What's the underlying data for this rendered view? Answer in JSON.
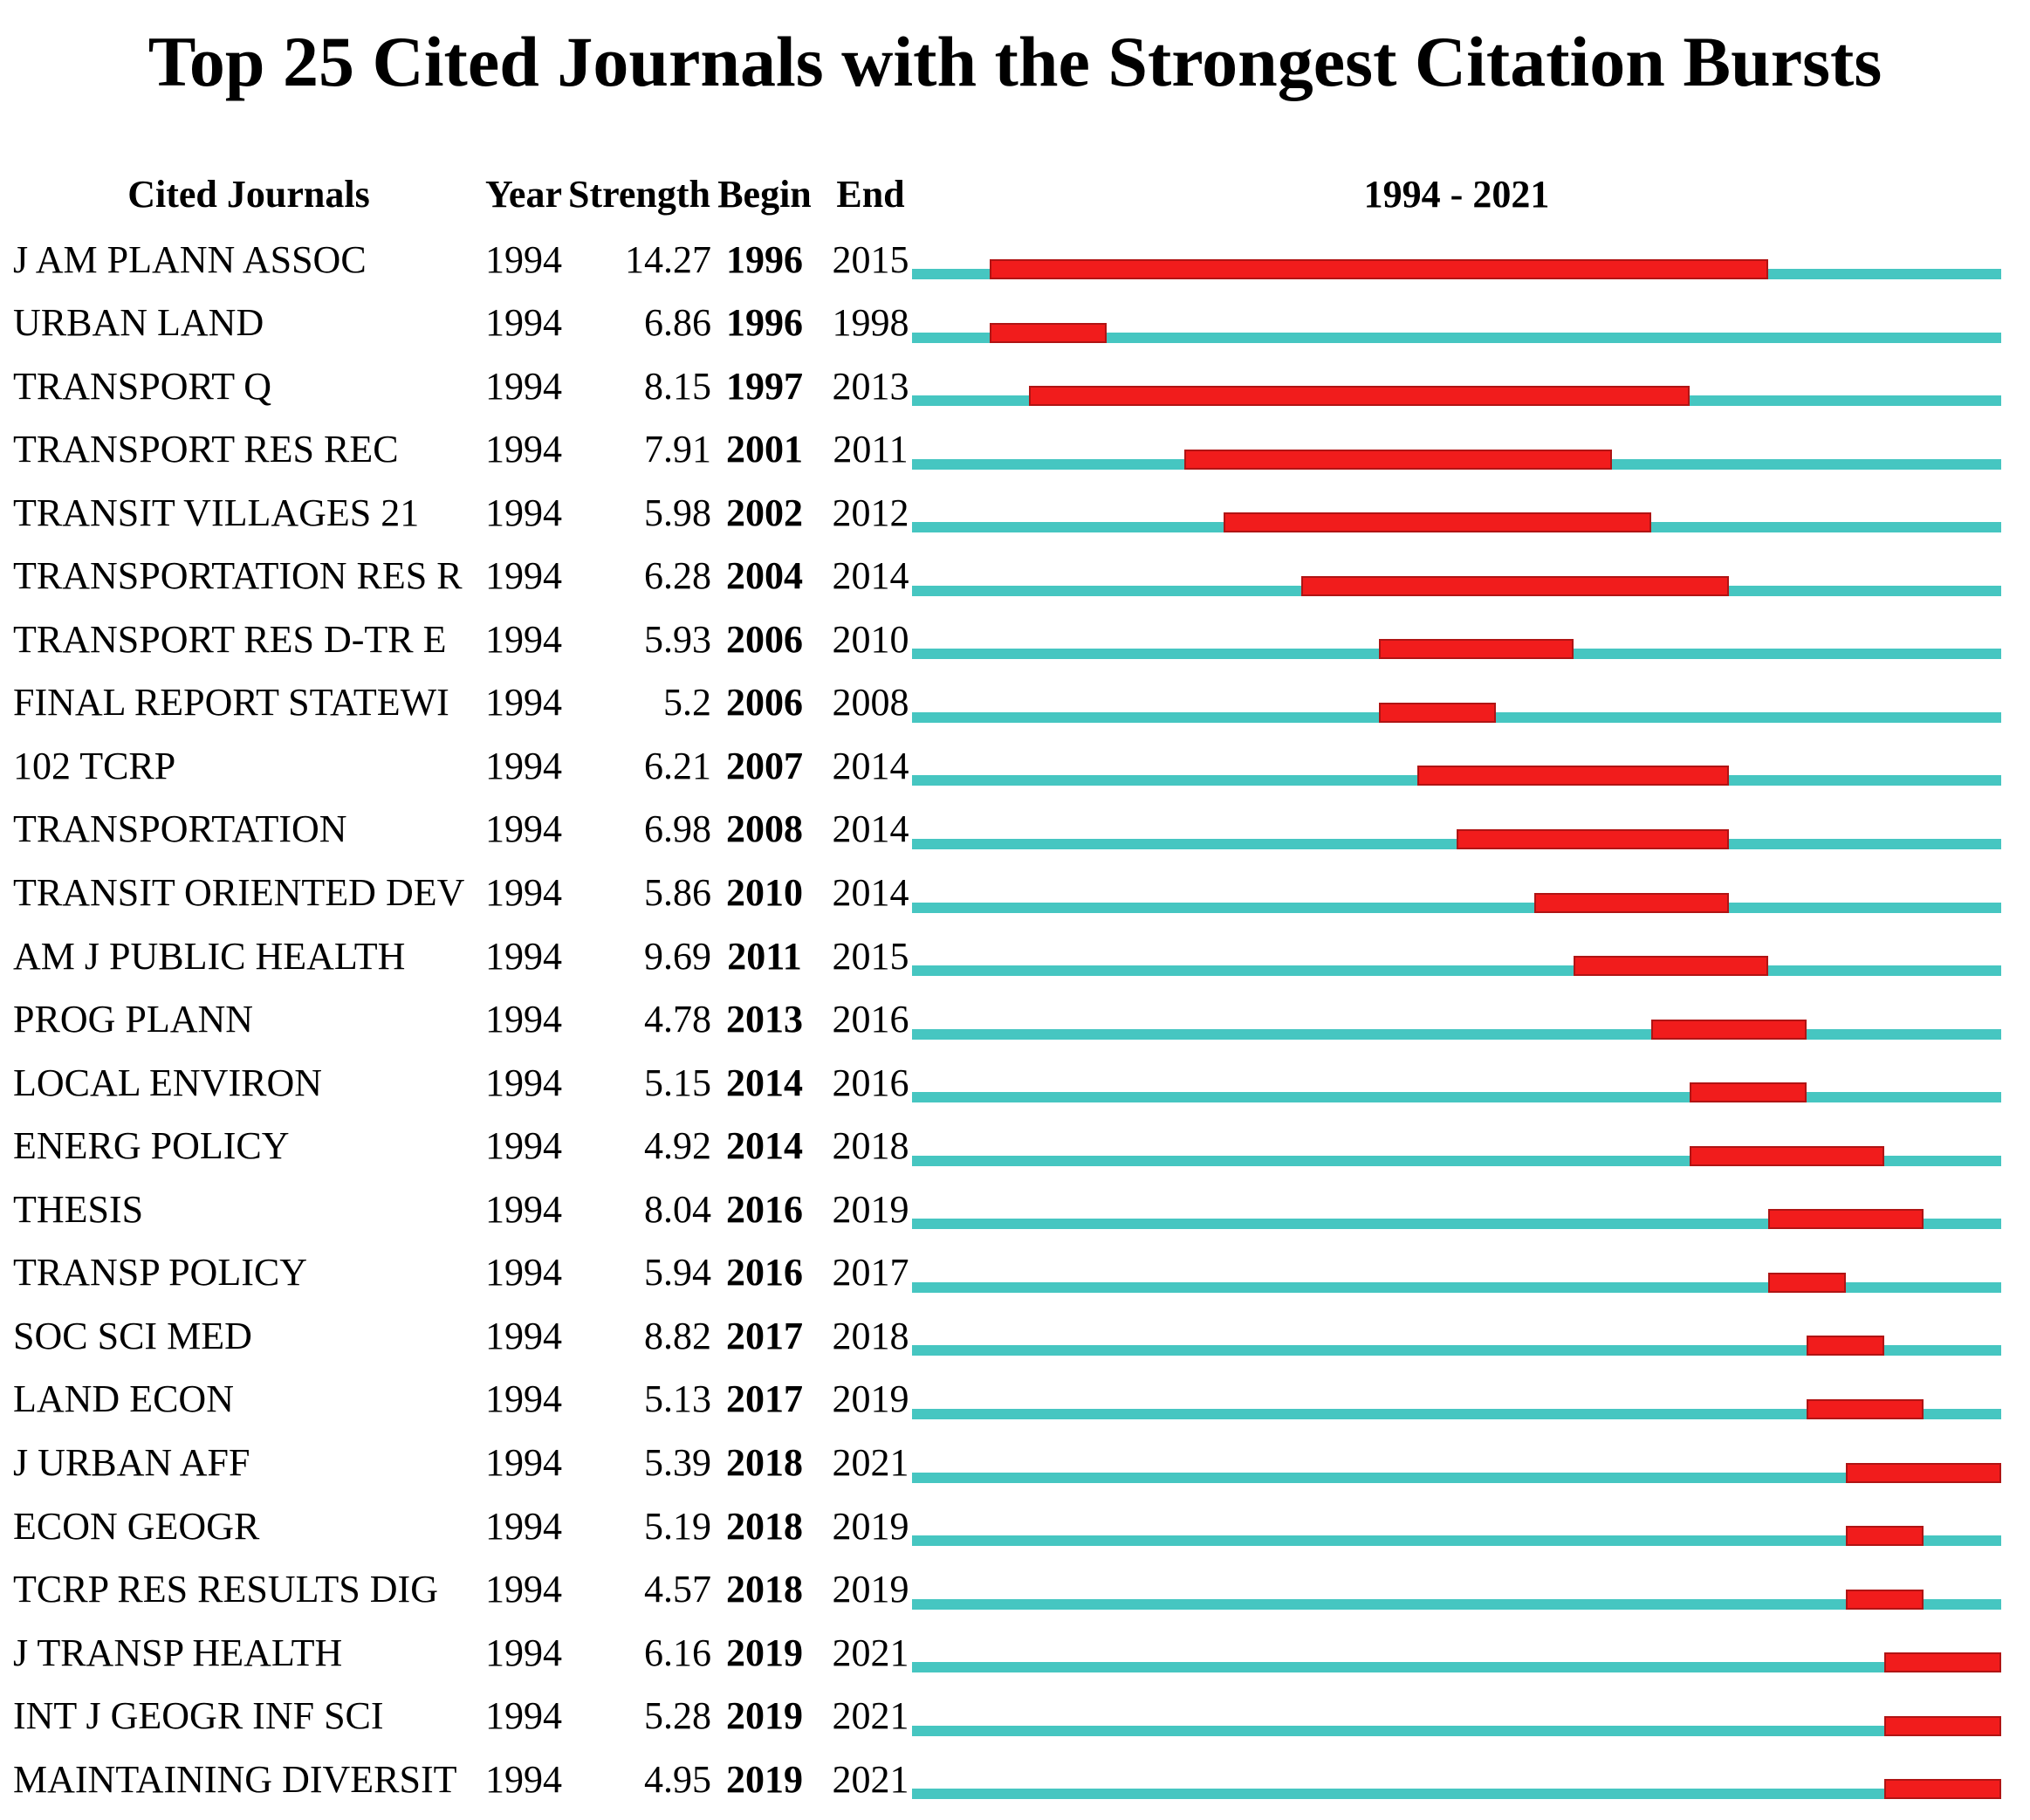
{
  "colors": {
    "background": "#FFFFFF",
    "text": "#000000",
    "timeline": "#46C6C1",
    "burst": "#F11C1C",
    "burst_border": "#B01414"
  },
  "chart_data": {
    "type": "table",
    "title": "Top 25 Cited Journals with the Strongest Citation Bursts",
    "column_headers": [
      "Cited Journals",
      "Year",
      "Strength",
      "Begin",
      "End"
    ],
    "timeline_label": "1994 - 2021",
    "timeline_range": [
      1994,
      2021
    ],
    "legend": {
      "timeline_track": "full interval 1994-2021 (teal)",
      "burst_bar": "citation burst interval (red)"
    },
    "rows": [
      {
        "journal": "J AM PLANN ASSOC",
        "year": "1994",
        "strength": "14.27",
        "begin": 1996,
        "end": 2015
      },
      {
        "journal": "URBAN LAND",
        "year": "1994",
        "strength": "6.86",
        "begin": 1996,
        "end": 1998
      },
      {
        "journal": "TRANSPORT Q",
        "year": "1994",
        "strength": "8.15",
        "begin": 1997,
        "end": 2013
      },
      {
        "journal": "TRANSPORT RES REC",
        "year": "1994",
        "strength": "7.91",
        "begin": 2001,
        "end": 2011
      },
      {
        "journal": "TRANSIT VILLAGES 21",
        "year": "1994",
        "strength": "5.98",
        "begin": 2002,
        "end": 2012
      },
      {
        "journal": "TRANSPORTATION RES R",
        "year": "1994",
        "strength": "6.28",
        "begin": 2004,
        "end": 2014
      },
      {
        "journal": "TRANSPORT RES D-TR E",
        "year": "1994",
        "strength": "5.93",
        "begin": 2006,
        "end": 2010
      },
      {
        "journal": "FINAL REPORT STATEWI",
        "year": "1994",
        "strength": "5.2",
        "begin": 2006,
        "end": 2008
      },
      {
        "journal": "102 TCRP",
        "year": "1994",
        "strength": "6.21",
        "begin": 2007,
        "end": 2014
      },
      {
        "journal": "TRANSPORTATION",
        "year": "1994",
        "strength": "6.98",
        "begin": 2008,
        "end": 2014
      },
      {
        "journal": "TRANSIT ORIENTED DEV",
        "year": "1994",
        "strength": "5.86",
        "begin": 2010,
        "end": 2014
      },
      {
        "journal": "AM J PUBLIC HEALTH",
        "year": "1994",
        "strength": "9.69",
        "begin": 2011,
        "end": 2015
      },
      {
        "journal": "PROG PLANN",
        "year": "1994",
        "strength": "4.78",
        "begin": 2013,
        "end": 2016
      },
      {
        "journal": "LOCAL ENVIRON",
        "year": "1994",
        "strength": "5.15",
        "begin": 2014,
        "end": 2016
      },
      {
        "journal": "ENERG POLICY",
        "year": "1994",
        "strength": "4.92",
        "begin": 2014,
        "end": 2018
      },
      {
        "journal": "THESIS",
        "year": "1994",
        "strength": "8.04",
        "begin": 2016,
        "end": 2019
      },
      {
        "journal": "TRANSP POLICY",
        "year": "1994",
        "strength": "5.94",
        "begin": 2016,
        "end": 2017
      },
      {
        "journal": "SOC SCI MED",
        "year": "1994",
        "strength": "8.82",
        "begin": 2017,
        "end": 2018
      },
      {
        "journal": "LAND ECON",
        "year": "1994",
        "strength": "5.13",
        "begin": 2017,
        "end": 2019
      },
      {
        "journal": "J URBAN AFF",
        "year": "1994",
        "strength": "5.39",
        "begin": 2018,
        "end": 2021
      },
      {
        "journal": "ECON GEOGR",
        "year": "1994",
        "strength": "5.19",
        "begin": 2018,
        "end": 2019
      },
      {
        "journal": "TCRP RES RESULTS DIG",
        "year": "1994",
        "strength": "4.57",
        "begin": 2018,
        "end": 2019
      },
      {
        "journal": "J TRANSP HEALTH",
        "year": "1994",
        "strength": "6.16",
        "begin": 2019,
        "end": 2021
      },
      {
        "journal": "INT J GEOGR INF SCI",
        "year": "1994",
        "strength": "5.28",
        "begin": 2019,
        "end": 2021
      },
      {
        "journal": "MAINTAINING DIVERSIT",
        "year": "1994",
        "strength": "4.95",
        "begin": 2019,
        "end": 2021
      }
    ]
  }
}
